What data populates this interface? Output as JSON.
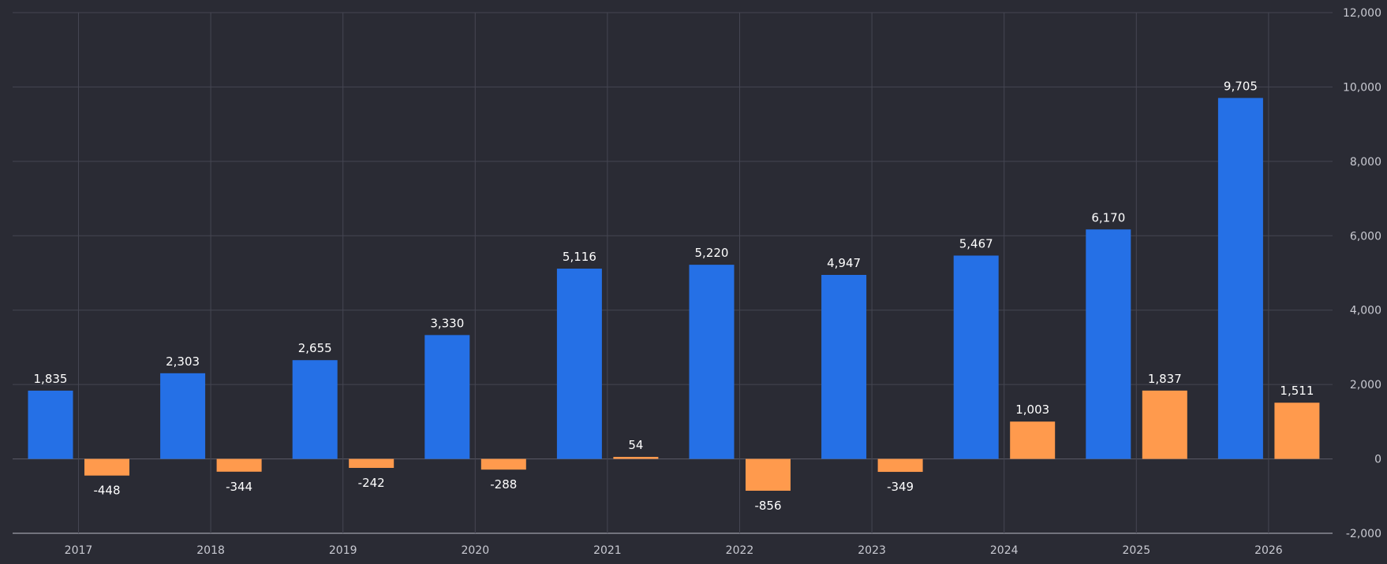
{
  "chart_data": {
    "type": "bar",
    "categories": [
      "2017",
      "2018",
      "2019",
      "2020",
      "2021",
      "2022",
      "2023",
      "2024",
      "2025",
      "2026"
    ],
    "series": [
      {
        "color": "#2570e6",
        "values": [
          1835,
          2303,
          2655,
          3330,
          5116,
          5220,
          4947,
          5467,
          6170,
          9705
        ],
        "labels": [
          "1,835",
          "2,303",
          "2,655",
          "3,330",
          "5,116",
          "5,220",
          "4,947",
          "5,467",
          "6,170",
          "9,705"
        ]
      },
      {
        "color": "#ff9a4d",
        "values": [
          -448,
          -344,
          -242,
          -288,
          54,
          -856,
          -349,
          1003,
          1837,
          1511
        ],
        "labels": [
          "-448",
          "-344",
          "-242",
          "-288",
          "54",
          "-856",
          "-349",
          "1,003",
          "1,837",
          "1,511"
        ]
      }
    ],
    "ylim": [
      -2000,
      12000
    ],
    "yticks": [
      -2000,
      0,
      2000,
      4000,
      6000,
      8000,
      10000,
      12000
    ],
    "ytick_labels": [
      "-2,000",
      "0",
      "2,000",
      "4,000",
      "6,000",
      "8,000",
      "10,000",
      "12,000"
    ],
    "y_axis_side": "right",
    "grid": true,
    "legend": "none",
    "colors": {
      "background": "#2a2b34",
      "grid": "#454652",
      "text": "#ffffff",
      "tick_text": "#c9cad2"
    }
  }
}
